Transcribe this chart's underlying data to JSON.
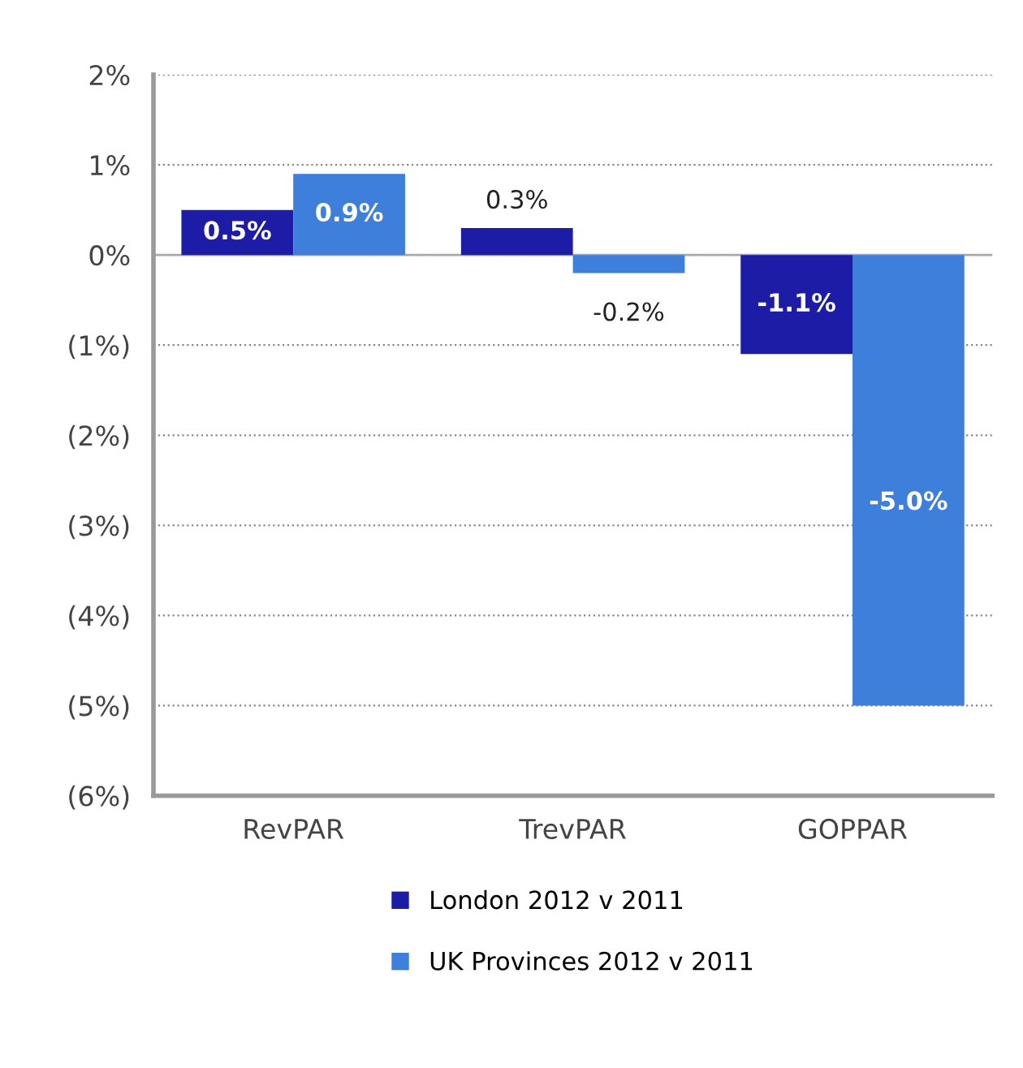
{
  "chart_data": {
    "type": "bar",
    "categories": [
      "RevPAR",
      "TrevPAR",
      "GOPPAR"
    ],
    "series": [
      {
        "name": "London 2012 v 2011",
        "color": "#1c1ca6",
        "values": [
          0.5,
          0.3,
          -1.1
        ],
        "value_labels": [
          "0.5%",
          "0.3%",
          "-1.1%"
        ]
      },
      {
        "name": "UK Provinces 2012 v 2011",
        "color": "#3f7fdc",
        "values": [
          0.9,
          -0.2,
          -5.0
        ],
        "value_labels": [
          "0.9%",
          "-0.2%",
          "-5.0%"
        ]
      }
    ],
    "ylim": [
      -6,
      2
    ],
    "yticks": [
      {
        "value": 2,
        "label": "2%"
      },
      {
        "value": 1,
        "label": "1%"
      },
      {
        "value": 0,
        "label": "0%"
      },
      {
        "value": -1,
        "label": "(1%)"
      },
      {
        "value": -2,
        "label": "(2%)"
      },
      {
        "value": -3,
        "label": "(3%)"
      },
      {
        "value": -4,
        "label": "(4%)"
      },
      {
        "value": -5,
        "label": "(5%)"
      },
      {
        "value": -6,
        "label": "(6%)"
      }
    ],
    "grid": "y",
    "legend": "bottom"
  }
}
